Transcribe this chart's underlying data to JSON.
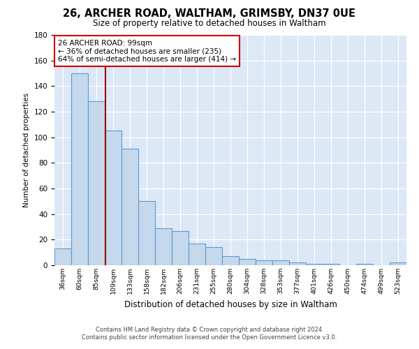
{
  "title": "26, ARCHER ROAD, WALTHAM, GRIMSBY, DN37 0UE",
  "subtitle": "Size of property relative to detached houses in Waltham",
  "xlabel": "Distribution of detached houses by size in Waltham",
  "ylabel": "Number of detached properties",
  "footer1": "Contains HM Land Registry data © Crown copyright and database right 2024.",
  "footer2": "Contains public sector information licensed under the Open Government Licence v3.0.",
  "categories": [
    "36sqm",
    "60sqm",
    "85sqm",
    "109sqm",
    "133sqm",
    "158sqm",
    "182sqm",
    "206sqm",
    "231sqm",
    "255sqm",
    "280sqm",
    "304sqm",
    "328sqm",
    "353sqm",
    "377sqm",
    "401sqm",
    "426sqm",
    "450sqm",
    "474sqm",
    "499sqm",
    "523sqm"
  ],
  "values": [
    13,
    150,
    128,
    105,
    91,
    50,
    29,
    27,
    17,
    14,
    7,
    5,
    4,
    4,
    2,
    1,
    1,
    0,
    1,
    0,
    2
  ],
  "bar_color": "#c5d8ec",
  "bar_edge_color": "#5b9bd5",
  "background_color": "#dce8f5",
  "annotation_box_color": "#ffffff",
  "annotation_border_color": "#cc0000",
  "vline_color": "#990000",
  "vline_position": 2.55,
  "annotation_text1": "26 ARCHER ROAD: 99sqm",
  "annotation_text2": "← 36% of detached houses are smaller (235)",
  "annotation_text3": "64% of semi-detached houses are larger (414) →",
  "ylim": [
    0,
    180
  ],
  "yticks": [
    0,
    20,
    40,
    60,
    80,
    100,
    120,
    140,
    160,
    180
  ]
}
